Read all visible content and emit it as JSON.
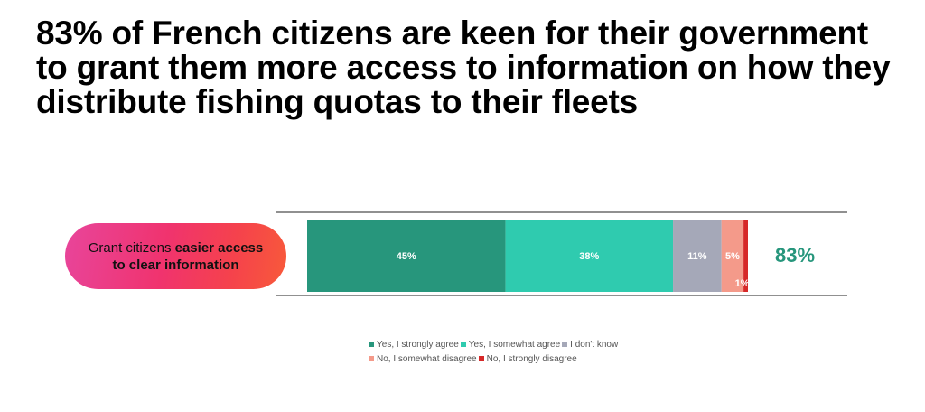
{
  "title": "83% of French citizens are keen for their government to grant them more access to information on how they distribute fishing quotas to their fleets",
  "category_label": {
    "part1": "Grant citizens ",
    "part2": "easier access to clear information"
  },
  "total_agree_label": "83%",
  "colors": {
    "strongly_agree": "#27967c",
    "somewhat_agree": "#2fcbaf",
    "dont_know": "#a5a8b8",
    "somewhat_disagree": "#f49a8a",
    "strongly_disagree": "#d62828",
    "total_label": "#27967c"
  },
  "chart_data": {
    "type": "bar",
    "orientation": "horizontal",
    "stacked": true,
    "categories": [
      "Grant citizens easier access to clear information"
    ],
    "series": [
      {
        "name": "Yes, I strongly agree",
        "values": [
          45
        ],
        "label": "45%",
        "color": "#27967c"
      },
      {
        "name": "Yes, I somewhat agree",
        "values": [
          38
        ],
        "label": "38%",
        "color": "#2fcbaf"
      },
      {
        "name": "I don't know",
        "values": [
          11
        ],
        "label": "11%",
        "color": "#a5a8b8"
      },
      {
        "name": "No, I somewhat disagree",
        "values": [
          5
        ],
        "label": "5%",
        "color": "#f49a8a"
      },
      {
        "name": "No, I strongly disagree",
        "values": [
          1
        ],
        "label": "1%",
        "color": "#d62828"
      }
    ],
    "xlim": [
      0,
      100
    ],
    "legend": "bottom",
    "grid": false
  }
}
